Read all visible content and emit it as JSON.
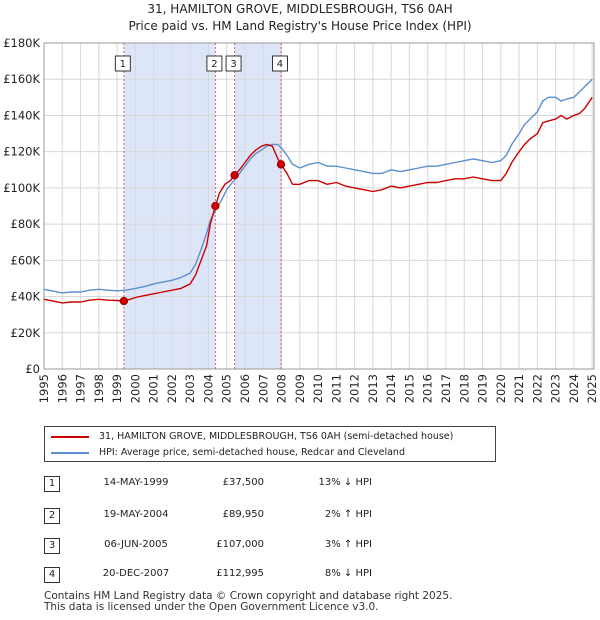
{
  "chart_data": {
    "type": "line",
    "title": "31, HAMILTON GROVE, MIDDLESBROUGH, TS6 0AH",
    "subtitle": "Price paid vs. HM Land Registry's House Price Index (HPI)",
    "xlim": [
      1995,
      2025.1
    ],
    "ylim": [
      0,
      180000
    ],
    "x_ticks": [
      1995,
      1996,
      1997,
      1998,
      1999,
      2000,
      2001,
      2002,
      2003,
      2004,
      2005,
      2006,
      2007,
      2008,
      2009,
      2010,
      2011,
      2012,
      2013,
      2014,
      2015,
      2016,
      2017,
      2018,
      2019,
      2020,
      2021,
      2022,
      2023,
      2024,
      2025
    ],
    "x_tick_labels": [
      "1995",
      "1996",
      "1997",
      "1998",
      "1999",
      "2000",
      "2001",
      "2002",
      "2003",
      "2004",
      "2005",
      "2006",
      "2007",
      "2008",
      "2009",
      "2010",
      "2011",
      "2012",
      "2013",
      "2014",
      "2015",
      "2016",
      "2017",
      "2018",
      "2019",
      "2020",
      "2021",
      "2022",
      "2023",
      "2024",
      "2025"
    ],
    "y_ticks": [
      0,
      20000,
      40000,
      60000,
      80000,
      100000,
      120000,
      140000,
      160000,
      180000
    ],
    "y_tick_labels": [
      "£0",
      "£20K",
      "£40K",
      "£60K",
      "£80K",
      "£100K",
      "£120K",
      "£140K",
      "£160K",
      "£180K"
    ],
    "grid": true,
    "shaded_periods": [
      [
        1999.37,
        2004.38
      ],
      [
        2005.43,
        2007.97
      ]
    ],
    "series": [
      {
        "name": "31, HAMILTON GROVE, MIDDLESBROUGH, TS6 0AH (semi-detached house)",
        "color": "#cc0000",
        "x": [
          1995.0,
          1995.5,
          1996.0,
          1996.5,
          1997.0,
          1997.5,
          1998.0,
          1998.5,
          1999.0,
          1999.37,
          1999.7,
          2000.0,
          2000.5,
          2001.0,
          2001.5,
          2002.0,
          2002.5,
          2003.0,
          2003.3,
          2003.6,
          2003.9,
          2004.1,
          2004.38,
          2004.6,
          2004.9,
          2005.2,
          2005.43,
          2005.7,
          2006.0,
          2006.3,
          2006.6,
          2006.9,
          2007.2,
          2007.5,
          2007.8,
          2007.97,
          2008.3,
          2008.6,
          2009.0,
          2009.5,
          2010.0,
          2010.5,
          2011.0,
          2011.5,
          2012.0,
          2012.5,
          2013.0,
          2013.5,
          2014.0,
          2014.5,
          2015.0,
          2015.5,
          2016.0,
          2016.5,
          2017.0,
          2017.5,
          2018.0,
          2018.5,
          2019.0,
          2019.5,
          2020.0,
          2020.3,
          2020.6,
          2021.0,
          2021.3,
          2021.6,
          2022.0,
          2022.3,
          2022.6,
          2023.0,
          2023.3,
          2023.6,
          2024.0,
          2024.3,
          2024.6,
          2025.0
        ],
        "y": [
          38500,
          37500,
          36500,
          37000,
          37000,
          38000,
          38500,
          38000,
          37800,
          37500,
          38500,
          39500,
          40500,
          41500,
          42500,
          43500,
          44500,
          47000,
          52000,
          60000,
          68000,
          80000,
          89950,
          97000,
          102000,
          104000,
          107000,
          110000,
          114000,
          118000,
          121000,
          123000,
          124000,
          123000,
          116000,
          112995,
          108000,
          102000,
          102000,
          104000,
          104000,
          102000,
          103000,
          101000,
          100000,
          99000,
          98000,
          99000,
          101000,
          100000,
          101000,
          102000,
          103000,
          103000,
          104000,
          105000,
          105000,
          106000,
          105000,
          104000,
          104000,
          108000,
          114000,
          120000,
          124000,
          127000,
          130000,
          136000,
          137000,
          138000,
          140000,
          138000,
          140000,
          141000,
          144000,
          150000
        ]
      },
      {
        "name": "HPI: Average price, semi-detached house, Redcar and Cleveland",
        "color": "#5b8fd0",
        "x": [
          1995.0,
          1995.5,
          1996.0,
          1996.5,
          1997.0,
          1997.5,
          1998.0,
          1998.5,
          1999.0,
          1999.5,
          2000.0,
          2000.5,
          2001.0,
          2001.5,
          2002.0,
          2002.5,
          2003.0,
          2003.3,
          2003.6,
          2003.9,
          2004.1,
          2004.4,
          2004.7,
          2005.0,
          2005.4,
          2005.7,
          2006.0,
          2006.3,
          2006.6,
          2006.9,
          2007.2,
          2007.5,
          2007.8,
          2008.0,
          2008.3,
          2008.6,
          2009.0,
          2009.5,
          2010.0,
          2010.5,
          2011.0,
          2011.5,
          2012.0,
          2012.5,
          2013.0,
          2013.5,
          2014.0,
          2014.5,
          2015.0,
          2015.5,
          2016.0,
          2016.5,
          2017.0,
          2017.5,
          2018.0,
          2018.5,
          2019.0,
          2019.5,
          2020.0,
          2020.3,
          2020.6,
          2021.0,
          2021.3,
          2021.6,
          2022.0,
          2022.3,
          2022.6,
          2023.0,
          2023.3,
          2023.6,
          2024.0,
          2024.3,
          2024.6,
          2025.0
        ],
        "y": [
          44000,
          43000,
          42000,
          42500,
          42500,
          43500,
          44000,
          43500,
          43200,
          43500,
          44500,
          45500,
          47000,
          48000,
          49000,
          50500,
          53000,
          58000,
          66000,
          75000,
          82000,
          88000,
          93000,
          99000,
          104000,
          108000,
          112000,
          116000,
          119000,
          121000,
          123000,
          124000,
          124000,
          122000,
          118000,
          113000,
          111000,
          113000,
          114000,
          112000,
          112000,
          111000,
          110000,
          109000,
          108000,
          108000,
          110000,
          109000,
          110000,
          111000,
          112000,
          112000,
          113000,
          114000,
          115000,
          116000,
          115000,
          114000,
          115000,
          118000,
          124000,
          130000,
          135000,
          138000,
          142000,
          148000,
          150000,
          150000,
          148000,
          149000,
          150000,
          153000,
          156000,
          160000
        ]
      }
    ],
    "sales": [
      {
        "label": "1",
        "x": 1999.37,
        "y": 37500
      },
      {
        "label": "2",
        "x": 2004.38,
        "y": 89950
      },
      {
        "label": "3",
        "x": 2005.43,
        "y": 107000
      },
      {
        "label": "4",
        "x": 2007.97,
        "y": 112995
      }
    ]
  },
  "legend": {
    "items": [
      {
        "label": "31, HAMILTON GROVE, MIDDLESBROUGH, TS6 0AH (semi-detached house)",
        "color": "#cc0000"
      },
      {
        "label": "HPI: Average price, semi-detached house, Redcar and Cleveland",
        "color": "#5b8fd0"
      }
    ]
  },
  "sales_table": [
    {
      "num": "1",
      "date": "14-MAY-1999",
      "price": "£37,500",
      "hpi": "13% ↓ HPI"
    },
    {
      "num": "2",
      "date": "19-MAY-2004",
      "price": "£89,950",
      "hpi": "2% ↑ HPI"
    },
    {
      "num": "3",
      "date": "06-JUN-2005",
      "price": "£107,000",
      "hpi": "3% ↑ HPI"
    },
    {
      "num": "4",
      "date": "20-DEC-2007",
      "price": "£112,995",
      "hpi": "8% ↓ HPI"
    }
  ],
  "footer": {
    "line1": "Contains HM Land Registry data © Crown copyright and database right 2025.",
    "line2": "This data is licensed under the Open Government Licence v3.0."
  }
}
